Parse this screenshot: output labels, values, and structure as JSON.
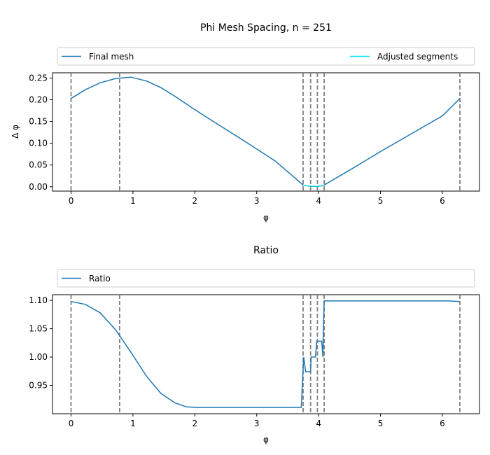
{
  "chart_data": [
    {
      "type": "line",
      "title": "Phi Mesh Spacing, n = 251",
      "xlabel": "φ",
      "ylabel": "Δ φ",
      "xlim": [
        -0.3,
        6.6
      ],
      "ylim": [
        -0.01,
        0.262
      ],
      "xticks": [
        0,
        1,
        2,
        3,
        4,
        5,
        6
      ],
      "yticks": [
        0.0,
        0.05,
        0.1,
        0.15,
        0.2,
        0.25
      ],
      "ytick_labels": [
        "0.00",
        "0.05",
        "0.10",
        "0.15",
        "0.20",
        "0.25"
      ],
      "legend": {
        "placement": "above-plot",
        "entries": [
          "Final mesh",
          "Adjusted segments"
        ]
      },
      "vlines": [
        0,
        0.785,
        3.75,
        3.87,
        3.98,
        4.09,
        6.283
      ],
      "series": [
        {
          "name": "Final mesh",
          "color": "#1f77b4",
          "x": [
            0,
            0.23,
            0.47,
            0.72,
            0.97,
            1.22,
            1.45,
            1.68,
            1.95,
            2.3,
            2.8,
            3.3,
            3.75,
            3.82,
            3.9,
            3.98,
            4.05,
            4.09,
            4.5,
            5.0,
            5.5,
            6.0,
            6.283
          ],
          "y": [
            0.203,
            0.223,
            0.239,
            0.249,
            0.252,
            0.243,
            0.228,
            0.208,
            0.182,
            0.15,
            0.105,
            0.059,
            0.004,
            0.002,
            0.001,
            0.001,
            0.002,
            0.004,
            0.038,
            0.081,
            0.122,
            0.163,
            0.203
          ]
        },
        {
          "name": "Adjusted segments",
          "color": "#00e5ee",
          "x": [
            3.75,
            3.82,
            3.9,
            3.98,
            4.05,
            4.09
          ],
          "y": [
            0.004,
            0.002,
            0.001,
            0.001,
            0.002,
            0.004
          ]
        }
      ]
    },
    {
      "type": "line",
      "title": "Ratio",
      "xlabel": "φ",
      "ylabel": "",
      "xlim": [
        -0.3,
        6.6
      ],
      "ylim": [
        0.9,
        1.11
      ],
      "xticks": [
        0,
        1,
        2,
        3,
        4,
        5,
        6
      ],
      "yticks": [
        0.95,
        1.0,
        1.05,
        1.1
      ],
      "ytick_labels": [
        "0.95",
        "1.00",
        "1.05",
        "1.10"
      ],
      "legend": {
        "placement": "above-plot",
        "entries": [
          "Ratio"
        ]
      },
      "vlines": [
        0,
        0.785,
        3.75,
        3.87,
        3.98,
        4.09,
        6.283
      ],
      "series": [
        {
          "name": "Ratio",
          "color": "#1f77b4",
          "x": [
            0,
            0.23,
            0.47,
            0.72,
            0.97,
            1.22,
            1.45,
            1.68,
            1.87,
            2.05,
            2.5,
            3.0,
            3.5,
            3.72,
            3.74,
            3.76,
            3.79,
            3.85,
            3.87,
            3.88,
            3.95,
            3.97,
            3.99,
            4.05,
            4.07,
            4.08,
            4.09,
            4.1,
            4.5,
            5.0,
            5.5,
            6.1,
            6.283
          ],
          "y": [
            1.098,
            1.093,
            1.078,
            1.048,
            1.008,
            0.966,
            0.936,
            0.919,
            0.912,
            0.911,
            0.911,
            0.911,
            0.911,
            0.911,
            0.96,
            1.0,
            0.974,
            0.974,
            0.974,
            1.0,
            1.0,
            1.028,
            1.028,
            1.028,
            1.0,
            1.06,
            1.099,
            1.099,
            1.099,
            1.099,
            1.099,
            1.099,
            1.098
          ]
        }
      ]
    }
  ]
}
